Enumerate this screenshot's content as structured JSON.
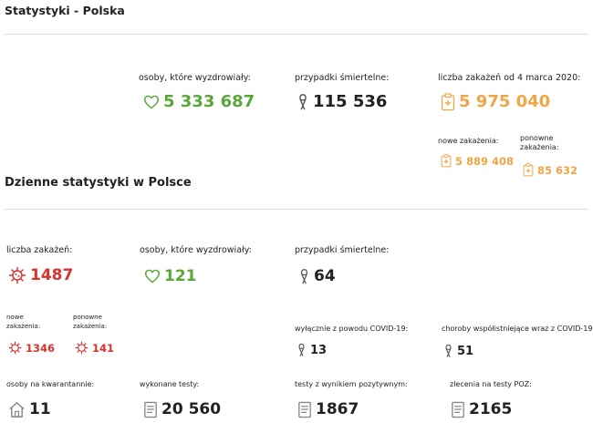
{
  "header": {
    "title": "Statystyki - Polska"
  },
  "totals": {
    "recovered": {
      "label": "osoby, które wyzdrowiały:",
      "value": "5 333 687",
      "icon": "heart-outline-icon"
    },
    "deaths": {
      "label": "przypadki śmiertelne:",
      "value": "115 536",
      "icon": "ribbon-icon"
    },
    "infections": {
      "label": "liczba zakażeń od 4 marca 2020:",
      "value": "5 975 040",
      "icon": "medical-clipboard-icon"
    },
    "new_infections": {
      "label": "nowe zakażenia:",
      "value": "5 889 408"
    },
    "reinfections": {
      "label_line1": "ponowne",
      "label_line2": "zakażenia:",
      "value": "85 632"
    }
  },
  "daily": {
    "title": "Dzienne statystyki w Polsce",
    "infections": {
      "label": "liczba zakażeń:",
      "value": "1487",
      "icon": "virus-icon"
    },
    "new_infections": {
      "label_line1": "nowe",
      "label_line2": "zakażenia:",
      "value": "1346"
    },
    "reinfections": {
      "label_line1": "ponowne",
      "label_line2": "zakażenia:",
      "value": "141"
    },
    "recovered": {
      "label": "osoby, które wyzdrowiały:",
      "value": "121"
    },
    "deaths": {
      "label": "przypadki śmiertelne:",
      "value": "64"
    },
    "covid_only": {
      "label": "wyłącznie z powodu COVID-19:",
      "value": "13"
    },
    "comorbid": {
      "label": "choroby współistniejące wraz z COVID-19:",
      "value": "51"
    },
    "quarantine": {
      "label": "osoby na kwarantannie:",
      "value": "11",
      "icon": "house-icon"
    },
    "tests": {
      "label": "wykonane testy:",
      "value": "20 560",
      "icon": "document-icon"
    },
    "positive_tests": {
      "label": "testy z wynikiem pozytywnym:",
      "value": "1867",
      "icon": "document-icon"
    },
    "poz_orders": {
      "label": "zlecenia na testy POZ:",
      "value": "2165",
      "icon": "document-icon"
    }
  },
  "colors": {
    "green": "#5aa638",
    "orange": "#f0a644",
    "red": "#d9312b",
    "dark": "#222222",
    "divider": "#dddddd"
  }
}
